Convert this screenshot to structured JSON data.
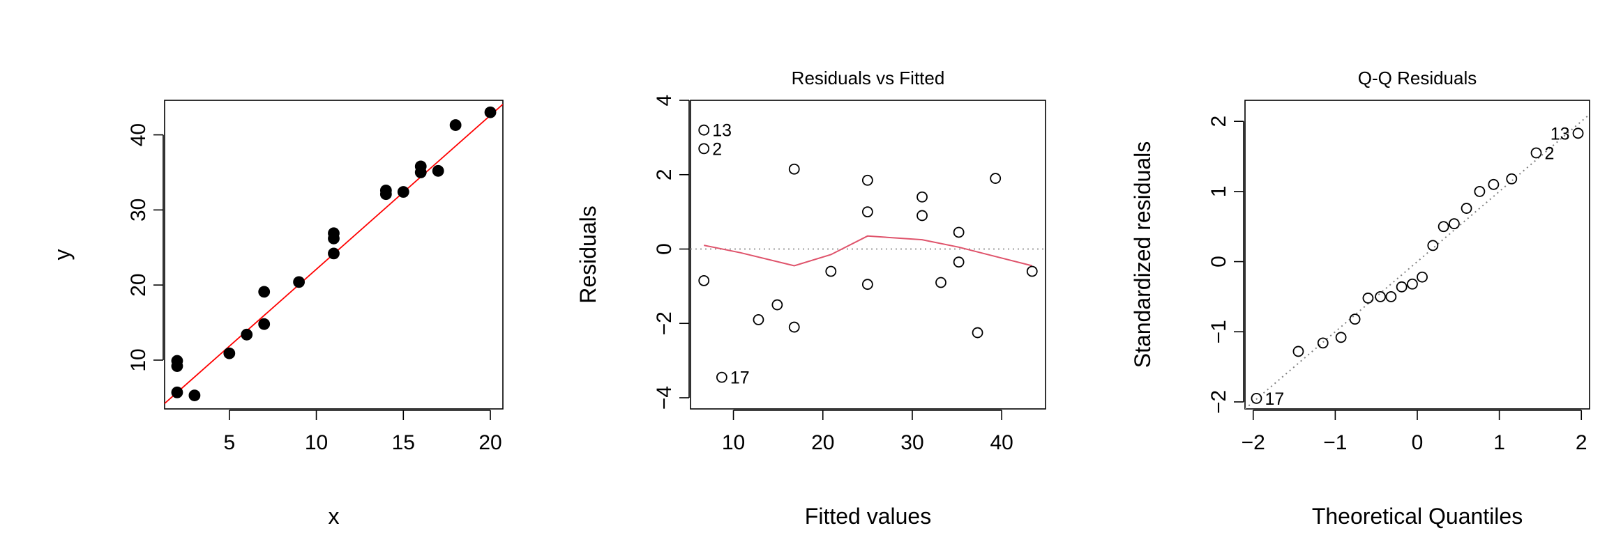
{
  "chart_data": [
    {
      "type": "scatter",
      "title": "",
      "xlabel": "x",
      "ylabel": "y",
      "xlim": [
        1.28,
        20.72
      ],
      "ylim": [
        3.5,
        44.6
      ],
      "xticks": [
        5,
        10,
        15,
        20
      ],
      "yticks": [
        10,
        20,
        30,
        40
      ],
      "point_style": "filled",
      "points": [
        {
          "x": 2,
          "y": 9.2
        },
        {
          "x": 2,
          "y": 9.9
        },
        {
          "x": 2,
          "y": 5.7
        },
        {
          "x": 3,
          "y": 5.3
        },
        {
          "x": 5,
          "y": 10.9
        },
        {
          "x": 6,
          "y": 13.4
        },
        {
          "x": 7,
          "y": 14.8
        },
        {
          "x": 7,
          "y": 19.1
        },
        {
          "x": 9,
          "y": 20.4
        },
        {
          "x": 11,
          "y": 24.2
        },
        {
          "x": 11,
          "y": 26.2
        },
        {
          "x": 11,
          "y": 26.9
        },
        {
          "x": 14,
          "y": 32.1
        },
        {
          "x": 14,
          "y": 32.6
        },
        {
          "x": 15,
          "y": 32.4
        },
        {
          "x": 16,
          "y": 35.0
        },
        {
          "x": 16,
          "y": 35.8
        },
        {
          "x": 17,
          "y": 35.2
        },
        {
          "x": 18,
          "y": 41.3
        },
        {
          "x": 20,
          "y": 43.0
        }
      ],
      "fit_line": {
        "intercept": 1.6,
        "slope": 2.05,
        "color": "#ff0000"
      }
    },
    {
      "type": "scatter",
      "title": "Residuals vs Fitted",
      "xlabel": "Fitted values",
      "ylabel": "Residuals",
      "xlim": [
        5.2,
        44.9
      ],
      "ylim": [
        -4.3,
        4.0
      ],
      "xticks": [
        10,
        20,
        30,
        40
      ],
      "yticks": [
        -4,
        -2,
        0,
        2,
        4
      ],
      "point_style": "open",
      "points": [
        {
          "x": 6.7,
          "y": 3.2,
          "label": "13"
        },
        {
          "x": 6.7,
          "y": 2.7,
          "label": "2"
        },
        {
          "x": 6.7,
          "y": -0.85
        },
        {
          "x": 8.7,
          "y": -3.45,
          "label": "17"
        },
        {
          "x": 12.8,
          "y": -1.9
        },
        {
          "x": 14.9,
          "y": -1.5
        },
        {
          "x": 16.8,
          "y": 2.15
        },
        {
          "x": 16.8,
          "y": -2.1
        },
        {
          "x": 20.9,
          "y": -0.6
        },
        {
          "x": 25.0,
          "y": 1.85
        },
        {
          "x": 25.0,
          "y": 1.0
        },
        {
          "x": 25.0,
          "y": -0.95
        },
        {
          "x": 31.1,
          "y": 1.4
        },
        {
          "x": 31.1,
          "y": 0.9
        },
        {
          "x": 33.2,
          "y": -0.9
        },
        {
          "x": 35.2,
          "y": 0.45
        },
        {
          "x": 35.2,
          "y": -0.35
        },
        {
          "x": 37.3,
          "y": -2.25
        },
        {
          "x": 39.3,
          "y": 1.9
        },
        {
          "x": 43.4,
          "y": -0.6
        }
      ],
      "reference_line": {
        "y": 0,
        "style": "dotted",
        "color": "#a0a0a0"
      },
      "smooth_line": {
        "color": "#df536b",
        "points": [
          {
            "x": 6.7,
            "y": 0.1
          },
          {
            "x": 10.8,
            "y": -0.1
          },
          {
            "x": 16.8,
            "y": -0.45
          },
          {
            "x": 20.9,
            "y": -0.15
          },
          {
            "x": 25.0,
            "y": 0.35
          },
          {
            "x": 31.1,
            "y": 0.25
          },
          {
            "x": 35.2,
            "y": 0.05
          },
          {
            "x": 39.3,
            "y": -0.2
          },
          {
            "x": 43.4,
            "y": -0.45
          }
        ]
      }
    },
    {
      "type": "scatter",
      "title": "Q-Q Residuals",
      "xlabel": "Theoretical Quantiles",
      "ylabel": "Standardized residuals",
      "xlim": [
        -2.1,
        2.1
      ],
      "ylim": [
        -2.1,
        2.3
      ],
      "xticks": [
        -2,
        -1,
        0,
        1,
        2
      ],
      "yticks": [
        -2,
        -1,
        0,
        1,
        2
      ],
      "point_style": "open",
      "points": [
        {
          "x": -1.96,
          "y": -1.95,
          "label": "17"
        },
        {
          "x": -1.45,
          "y": -1.28
        },
        {
          "x": -1.15,
          "y": -1.16
        },
        {
          "x": -0.93,
          "y": -1.08
        },
        {
          "x": -0.76,
          "y": -0.82
        },
        {
          "x": -0.6,
          "y": -0.52
        },
        {
          "x": -0.45,
          "y": -0.5
        },
        {
          "x": -0.32,
          "y": -0.5
        },
        {
          "x": -0.19,
          "y": -0.36
        },
        {
          "x": -0.06,
          "y": -0.32
        },
        {
          "x": 0.06,
          "y": -0.22
        },
        {
          "x": 0.19,
          "y": 0.23
        },
        {
          "x": 0.32,
          "y": 0.5
        },
        {
          "x": 0.45,
          "y": 0.54
        },
        {
          "x": 0.6,
          "y": 0.76
        },
        {
          "x": 0.76,
          "y": 1.0
        },
        {
          "x": 0.93,
          "y": 1.1
        },
        {
          "x": 1.15,
          "y": 1.18
        },
        {
          "x": 1.45,
          "y": 1.55,
          "label": "2"
        },
        {
          "x": 1.96,
          "y": 1.83,
          "label": "13"
        }
      ],
      "reference_line": {
        "type": "qq",
        "intercept": 0,
        "slope": 1,
        "style": "dotted",
        "color": "#808080"
      }
    }
  ]
}
